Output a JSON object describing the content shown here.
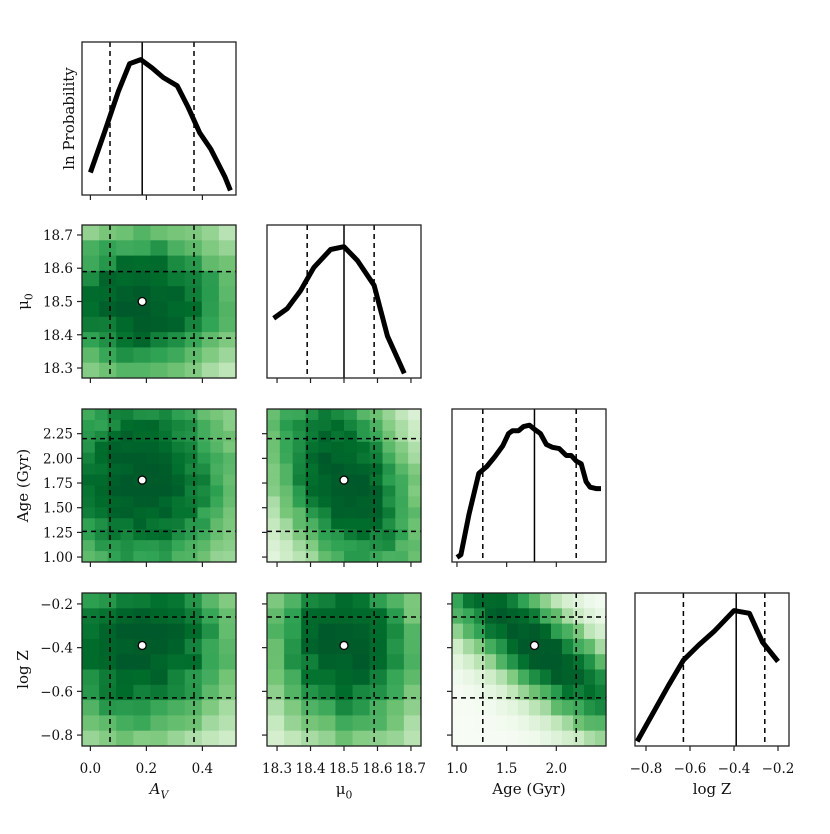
{
  "figure": {
    "type": "corner-plot"
  },
  "colors": {
    "map_low": "#f2f9ef",
    "map_high": "#00592a",
    "line": "#000000",
    "marker_fill": "#ffffff"
  },
  "chart_data": {
    "type": "heatmap",
    "title": "",
    "params": [
      {
        "key": "av",
        "label": "A_V",
        "range": [
          -0.03,
          0.52
        ],
        "ticks": [
          0.0,
          0.2,
          0.4
        ],
        "tick_labels": [
          "0.0",
          "0.2",
          "0.4"
        ],
        "best": 0.185,
        "lo": 0.07,
        "hi": 0.37
      },
      {
        "key": "mu",
        "label": "μ_0",
        "range": [
          18.27,
          18.73
        ],
        "ticks": [
          18.3,
          18.4,
          18.5,
          18.6,
          18.7
        ],
        "tick_labels": [
          "18.3",
          "18.4",
          "18.5",
          "18.6",
          "18.7"
        ],
        "best": 18.5,
        "lo": 18.39,
        "hi": 18.59
      },
      {
        "key": "age",
        "label": "Age (Gyr)",
        "range": [
          0.95,
          2.5
        ],
        "ticks": [
          1.0,
          1.5,
          2.0
        ],
        "tick_labels": [
          "1.0",
          "1.5",
          "2.0"
        ],
        "y_ticks": [
          1.0,
          1.25,
          1.5,
          1.75,
          2.0,
          2.25
        ],
        "y_tick_labels": [
          "1.00",
          "1.25",
          "1.50",
          "1.75",
          "2.00",
          "2.25"
        ],
        "best": 1.78,
        "lo": 1.26,
        "hi": 2.2
      },
      {
        "key": "logz",
        "label": "log  Z",
        "range": [
          -0.85,
          -0.15
        ],
        "ticks": [
          -0.8,
          -0.6,
          -0.4,
          -0.2
        ],
        "tick_labels": [
          "−0.8",
          "−0.6",
          "−0.4",
          "−0.2"
        ],
        "y_ticks": [
          -0.8,
          -0.6,
          -0.4,
          -0.2
        ],
        "y_tick_labels": [
          "−0.8",
          "−0.6",
          "−0.4",
          "−0.2"
        ],
        "best": -0.39,
        "lo": -0.63,
        "hi": -0.26
      }
    ],
    "row_labels": [
      "ln  Probability",
      "μ_0",
      "Age (Gyr)",
      "log  Z"
    ],
    "col_labels": [
      "A_V",
      "μ_0",
      "Age (Gyr)",
      "log  Z"
    ],
    "diag_profiles": [
      {
        "x": [
          0.0,
          0.05,
          0.1,
          0.14,
          0.18,
          0.22,
          0.26,
          0.31,
          0.35,
          0.39,
          0.43,
          0.48,
          0.5
        ],
        "y": [
          0.13,
          0.42,
          0.72,
          0.92,
          0.95,
          0.89,
          0.82,
          0.76,
          0.6,
          0.42,
          0.3,
          0.1,
          0.0
        ]
      },
      {
        "x": [
          18.29,
          18.33,
          18.37,
          18.41,
          18.46,
          18.5,
          18.54,
          18.59,
          18.63,
          18.68
        ],
        "y": [
          0.4,
          0.47,
          0.6,
          0.77,
          0.9,
          0.92,
          0.82,
          0.64,
          0.27,
          0.0
        ]
      },
      {
        "x": [
          1.0,
          1.04,
          1.12,
          1.22,
          1.3,
          1.38,
          1.46,
          1.52,
          1.56,
          1.62,
          1.67,
          1.73,
          1.78,
          1.84,
          1.9,
          1.96,
          2.03,
          2.1,
          2.15,
          2.2,
          2.25,
          2.3,
          2.34,
          2.4,
          2.45
        ],
        "y": [
          0.0,
          0.02,
          0.31,
          0.61,
          0.66,
          0.73,
          0.81,
          0.9,
          0.92,
          0.92,
          0.95,
          0.96,
          0.93,
          0.9,
          0.82,
          0.8,
          0.79,
          0.74,
          0.74,
          0.7,
          0.68,
          0.55,
          0.51,
          0.5,
          0.5
        ]
      },
      {
        "x": [
          -0.84,
          -0.77,
          -0.7,
          -0.63,
          -0.56,
          -0.49,
          -0.4,
          -0.33,
          -0.27,
          -0.2
        ],
        "y": [
          0.0,
          0.2,
          0.4,
          0.59,
          0.7,
          0.8,
          0.95,
          0.93,
          0.72,
          0.58
        ]
      }
    ],
    "heatmaps": [
      {
        "row": "mu",
        "col": "av",
        "nx": 9,
        "ny": 10,
        "corr": 0.0
      },
      {
        "row": "age",
        "col": "av",
        "nx": 12,
        "ny": 14,
        "corr": 0.0
      },
      {
        "row": "age",
        "col": "mu",
        "nx": 12,
        "ny": 14,
        "corr": -0.45
      },
      {
        "row": "logz",
        "col": "av",
        "nx": 9,
        "ny": 10,
        "corr": 0.05
      },
      {
        "row": "logz",
        "col": "mu",
        "nx": 9,
        "ny": 10,
        "corr": -0.1
      },
      {
        "row": "logz",
        "col": "age",
        "nx": 14,
        "ny": 10,
        "corr": -0.85
      }
    ]
  }
}
